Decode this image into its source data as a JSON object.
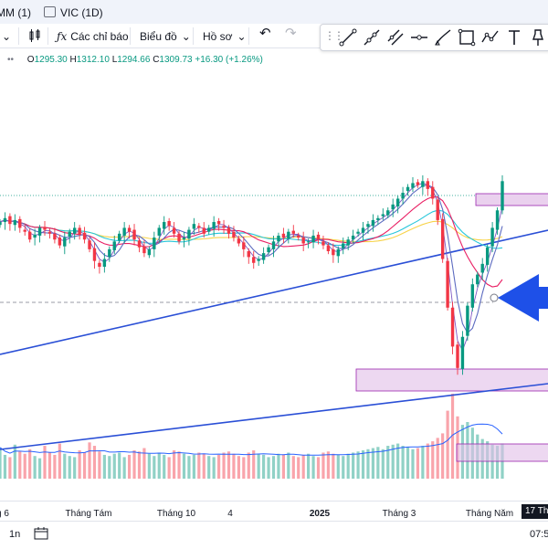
{
  "tabs": [
    {
      "label": "MM (1)"
    },
    {
      "label": "VIC (1D)"
    }
  ],
  "toolbar": {
    "indicators_label": "Các chỉ báo",
    "chart_type_label": "Biểu đồ",
    "profile_label": "Hồ sơ"
  },
  "ohlc": {
    "open_label": "O",
    "open": "1295.30",
    "high_label": "H",
    "high": "1312.10",
    "low_label": "L",
    "low": "1294.66",
    "close_label": "C",
    "close": "1309.73",
    "change": "+16.30 (+1.26%)"
  },
  "x_axis": {
    "ticks": [
      "g 6",
      "Tháng Tám",
      "Tháng 10",
      "4",
      "2025",
      "Tháng 3",
      "Tháng Năm"
    ],
    "cursor_date": "17 Th"
  },
  "bottom": {
    "interval": "1n",
    "time": "07:5"
  },
  "colors": {
    "up": "#089981",
    "down": "#f23645",
    "trendline": "#2a4fd6",
    "zone": "#e1bee7",
    "arrow": "#1e50e8"
  },
  "chart_data": {
    "type": "candlestick",
    "title": "",
    "xlabel": "",
    "ylabel": "",
    "ohlc_last": {
      "open": 1295.3,
      "high": 1312.1,
      "low": 1294.66,
      "close": 1309.73
    },
    "x_ticks": [
      "g 6",
      "Tháng Tám",
      "Tháng 10",
      "4",
      "2025",
      "Tháng 3",
      "Tháng Năm"
    ],
    "close_series": [
      1268,
      1272,
      1266,
      1270,
      1262,
      1258,
      1250,
      1255,
      1262,
      1260,
      1256,
      1250,
      1244,
      1252,
      1258,
      1262,
      1255,
      1250,
      1240,
      1228,
      1222,
      1230,
      1240,
      1248,
      1256,
      1262,
      1258,
      1250,
      1242,
      1236,
      1240,
      1252,
      1262,
      1268,
      1264,
      1256,
      1248,
      1252,
      1260,
      1266,
      1262,
      1256,
      1262,
      1268,
      1266,
      1262,
      1256,
      1252,
      1246,
      1240,
      1232,
      1226,
      1230,
      1236,
      1242,
      1248,
      1254,
      1252,
      1258,
      1256,
      1252,
      1246,
      1248,
      1254,
      1250,
      1244,
      1238,
      1234,
      1240,
      1246,
      1250,
      1254,
      1258,
      1262,
      1266,
      1270,
      1272,
      1276,
      1280,
      1286,
      1292,
      1298,
      1304,
      1308,
      1306,
      1310,
      1302,
      1292,
      1270,
      1230,
      1180,
      1140,
      1118,
      1150,
      1182,
      1204,
      1214,
      1225,
      1242,
      1262,
      1280,
      1310
    ],
    "volume_series": [
      55,
      42,
      38,
      60,
      48,
      44,
      52,
      40,
      36,
      58,
      46,
      42,
      62,
      44,
      40,
      38,
      50,
      46,
      64,
      58,
      48,
      42,
      40,
      44,
      46,
      38,
      42,
      50,
      48,
      54,
      44,
      40,
      46,
      42,
      38,
      50,
      48,
      44,
      40,
      42,
      46,
      44,
      40,
      38,
      42,
      46,
      48,
      44,
      40,
      38,
      46,
      50,
      44,
      42,
      38,
      40,
      44,
      42,
      46,
      40,
      38,
      42,
      44,
      40,
      38,
      46,
      48,
      44,
      42,
      40,
      44,
      46,
      48,
      50,
      52,
      54,
      56,
      52,
      58,
      60,
      62,
      58,
      56,
      52,
      54,
      58,
      62,
      66,
      72,
      80,
      120,
      150,
      110,
      95,
      100,
      90,
      78,
      70,
      66,
      60,
      58,
      62
    ],
    "zones": [
      "resistance",
      "support",
      "volume"
    ],
    "indicators": [
      "MA short",
      "MA medium",
      "MA long",
      "MA very long"
    ]
  }
}
